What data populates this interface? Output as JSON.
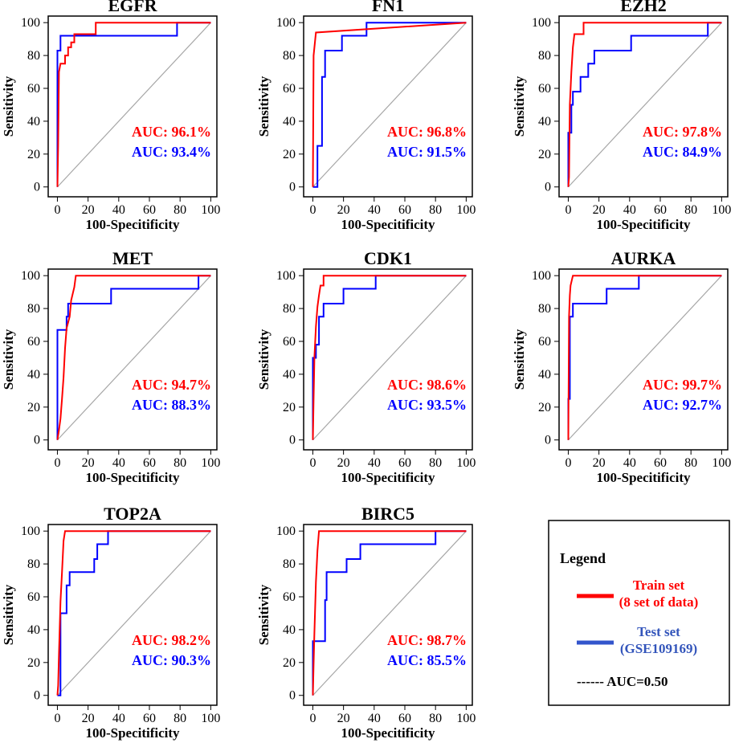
{
  "chart_data": {
    "type": "line",
    "panels": [
      {
        "title": "EGFR",
        "xlabel": "100-Specitificity",
        "ylabel": "Sensitivity",
        "xlim": [
          0,
          100
        ],
        "ylim": [
          0,
          100
        ],
        "train_auc": "AUC: 96.1%",
        "test_auc": "AUC: 93.4%",
        "train": [
          [
            0,
            0
          ],
          [
            0.5,
            25
          ],
          [
            1,
            70
          ],
          [
            2,
            75
          ],
          [
            5,
            75
          ],
          [
            5,
            80
          ],
          [
            7,
            80
          ],
          [
            7,
            85
          ],
          [
            9,
            85
          ],
          [
            9,
            88
          ],
          [
            11,
            88
          ],
          [
            11,
            93
          ],
          [
            25,
            93
          ],
          [
            25,
            100
          ],
          [
            100,
            100
          ]
        ],
        "test": [
          [
            0,
            0
          ],
          [
            0,
            83
          ],
          [
            2,
            83
          ],
          [
            2,
            92
          ],
          [
            78,
            92
          ],
          [
            78,
            100
          ],
          [
            100,
            100
          ]
        ]
      },
      {
        "title": "FN1",
        "xlabel": "100-Specitificity",
        "ylabel": "Sensitivity",
        "xlim": [
          0,
          100
        ],
        "ylim": [
          0,
          100
        ],
        "train_auc": "AUC: 96.8%",
        "test_auc": "AUC: 91.5%",
        "train": [
          [
            0,
            0
          ],
          [
            0.5,
            80
          ],
          [
            2,
            94
          ],
          [
            100,
            100
          ]
        ],
        "test": [
          [
            0,
            0
          ],
          [
            3,
            0
          ],
          [
            3,
            25
          ],
          [
            6,
            25
          ],
          [
            6,
            67
          ],
          [
            8,
            67
          ],
          [
            8,
            83
          ],
          [
            19,
            83
          ],
          [
            19,
            92
          ],
          [
            35,
            92
          ],
          [
            35,
            100
          ],
          [
            100,
            100
          ]
        ]
      },
      {
        "title": "EZH2",
        "xlabel": "100-Specitificity",
        "ylabel": "Sensitivity",
        "xlim": [
          0,
          100
        ],
        "ylim": [
          0,
          100
        ],
        "train_auc": "AUC: 97.8%",
        "test_auc": "AUC: 84.9%",
        "train": [
          [
            0,
            0
          ],
          [
            0.5,
            6
          ],
          [
            1,
            50
          ],
          [
            2,
            70
          ],
          [
            3,
            85
          ],
          [
            4,
            93
          ],
          [
            10,
            93
          ],
          [
            10,
            100
          ],
          [
            100,
            100
          ]
        ],
        "test": [
          [
            0,
            0
          ],
          [
            0,
            33
          ],
          [
            2,
            33
          ],
          [
            2,
            50
          ],
          [
            3,
            50
          ],
          [
            3,
            58
          ],
          [
            8,
            58
          ],
          [
            8,
            67
          ],
          [
            13,
            67
          ],
          [
            13,
            75
          ],
          [
            17,
            75
          ],
          [
            17,
            83
          ],
          [
            41,
            83
          ],
          [
            41,
            92
          ],
          [
            91,
            92
          ],
          [
            91,
            100
          ],
          [
            100,
            100
          ]
        ]
      },
      {
        "title": "MET",
        "xlabel": "100-Specitificity",
        "ylabel": "Sensitivity",
        "xlim": [
          0,
          100
        ],
        "ylim": [
          0,
          100
        ],
        "train_auc": "AUC: 94.7%",
        "test_auc": "AUC: 88.3%",
        "train": [
          [
            0,
            0
          ],
          [
            1,
            6
          ],
          [
            2,
            13
          ],
          [
            3,
            25
          ],
          [
            4,
            38
          ],
          [
            5,
            56
          ],
          [
            6,
            68
          ],
          [
            8,
            75
          ],
          [
            9,
            85
          ],
          [
            11,
            93
          ],
          [
            12,
            100
          ],
          [
            100,
            100
          ]
        ],
        "test": [
          [
            0,
            0
          ],
          [
            0,
            67
          ],
          [
            6,
            67
          ],
          [
            6,
            75
          ],
          [
            7,
            75
          ],
          [
            7,
            83
          ],
          [
            35,
            83
          ],
          [
            35,
            92
          ],
          [
            92,
            92
          ],
          [
            92,
            100
          ],
          [
            100,
            100
          ]
        ]
      },
      {
        "title": "CDK1",
        "xlabel": "100-Specitificity",
        "ylabel": "Sensitivity",
        "xlim": [
          0,
          100
        ],
        "ylim": [
          0,
          100
        ],
        "train_auc": "AUC: 98.6%",
        "test_auc": "AUC: 93.5%",
        "train": [
          [
            0,
            0
          ],
          [
            0.5,
            25
          ],
          [
            1,
            50
          ],
          [
            2,
            69
          ],
          [
            3,
            81
          ],
          [
            4,
            88
          ],
          [
            5,
            94
          ],
          [
            7,
            94
          ],
          [
            7,
            100
          ],
          [
            100,
            100
          ]
        ],
        "test": [
          [
            0,
            0
          ],
          [
            0,
            50
          ],
          [
            2,
            50
          ],
          [
            2,
            58
          ],
          [
            4,
            58
          ],
          [
            4,
            75
          ],
          [
            7,
            75
          ],
          [
            7,
            83
          ],
          [
            20,
            83
          ],
          [
            20,
            92
          ],
          [
            41,
            92
          ],
          [
            41,
            100
          ],
          [
            100,
            100
          ]
        ]
      },
      {
        "title": "AURKA",
        "xlabel": "100-Specitificity",
        "ylabel": "Sensitivity",
        "xlim": [
          0,
          100
        ],
        "ylim": [
          0,
          100
        ],
        "train_auc": "AUC: 99.7%",
        "test_auc": "AUC: 92.7%",
        "train": [
          [
            0,
            0
          ],
          [
            0.5,
            75
          ],
          [
            1,
            88
          ],
          [
            1.5,
            94
          ],
          [
            3,
            100
          ],
          [
            100,
            100
          ]
        ],
        "test": [
          [
            0,
            0
          ],
          [
            0,
            25
          ],
          [
            1,
            25
          ],
          [
            1,
            75
          ],
          [
            3,
            75
          ],
          [
            3,
            83
          ],
          [
            25,
            83
          ],
          [
            25,
            92
          ],
          [
            46,
            92
          ],
          [
            46,
            100
          ],
          [
            100,
            100
          ]
        ]
      },
      {
        "title": "TOP2A",
        "xlabel": "100-Specitificity",
        "ylabel": "Sensitivity",
        "xlim": [
          0,
          100
        ],
        "ylim": [
          0,
          100
        ],
        "train_auc": "AUC: 98.2%",
        "test_auc": "AUC: 90.3%",
        "train": [
          [
            0,
            0
          ],
          [
            0.5,
            6
          ],
          [
            1,
            25
          ],
          [
            2,
            57
          ],
          [
            3,
            75
          ],
          [
            4,
            94
          ],
          [
            5,
            100
          ],
          [
            100,
            100
          ]
        ],
        "test": [
          [
            0,
            0
          ],
          [
            2,
            0
          ],
          [
            2,
            50
          ],
          [
            6,
            50
          ],
          [
            6,
            67
          ],
          [
            8,
            67
          ],
          [
            8,
            75
          ],
          [
            24,
            75
          ],
          [
            24,
            83
          ],
          [
            26,
            83
          ],
          [
            26,
            92
          ],
          [
            33,
            92
          ],
          [
            33,
            100
          ],
          [
            100,
            100
          ]
        ]
      },
      {
        "title": "BIRC5",
        "xlabel": "100-Specitificity",
        "ylabel": "Sensitivity",
        "xlim": [
          0,
          100
        ],
        "ylim": [
          0,
          100
        ],
        "train_auc": "AUC: 98.7%",
        "test_auc": "AUC: 85.5%",
        "train": [
          [
            0,
            0
          ],
          [
            0.5,
            19
          ],
          [
            1,
            38
          ],
          [
            2,
            69
          ],
          [
            3,
            88
          ],
          [
            4,
            100
          ],
          [
            80,
            100
          ],
          [
            80,
            100
          ],
          [
            100,
            100
          ]
        ],
        "test": [
          [
            0,
            0
          ],
          [
            0,
            33
          ],
          [
            8,
            33
          ],
          [
            8,
            58
          ],
          [
            9,
            58
          ],
          [
            9,
            75
          ],
          [
            22,
            75
          ],
          [
            22,
            83
          ],
          [
            31,
            83
          ],
          [
            31,
            92
          ],
          [
            80,
            92
          ],
          [
            80,
            100
          ],
          [
            100,
            100
          ]
        ]
      }
    ],
    "x_ticks": [
      0,
      20,
      40,
      60,
      80,
      100
    ],
    "y_ticks": [
      0,
      20,
      40,
      60,
      80,
      100
    ],
    "colors": {
      "train": "#ff0000",
      "test": "#0000ff",
      "reference": "#a6a6a6"
    },
    "legend": {
      "title": "Legend",
      "train_line1": "Train set",
      "train_line2": "(8 set of data)",
      "test_line1": "Test set",
      "test_line2": "(GSE109169)",
      "reference_label": "------ AUC=0.50",
      "train_color": "#ff0000",
      "test_color": "#3355cc",
      "test_text_color": "#3355bb"
    }
  }
}
